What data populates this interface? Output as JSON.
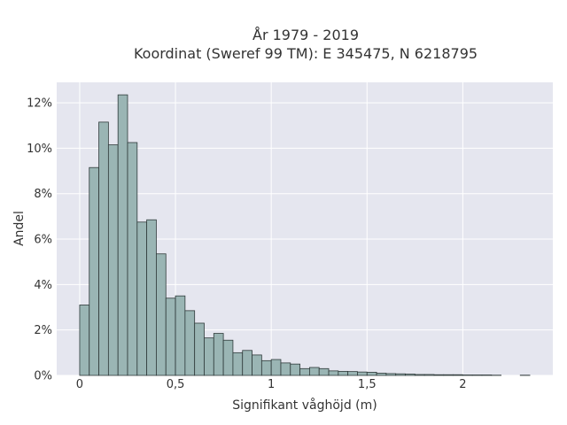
{
  "chart_data": {
    "type": "bar",
    "title": "År 1979 - 2019",
    "subtitle": "Koordinat (Sweref 99 TM): E 345475, N 6218795",
    "xlabel": "Signifikant våghöjd (m)",
    "ylabel": "Andel",
    "xlim": [
      -0.12,
      2.47
    ],
    "ylim": [
      0,
      12.9
    ],
    "x_ticks": [
      {
        "value": 0,
        "label": "0"
      },
      {
        "value": 0.5,
        "label": "0,5"
      },
      {
        "value": 1,
        "label": "1"
      },
      {
        "value": 1.5,
        "label": "1,5"
      },
      {
        "value": 2,
        "label": "2"
      }
    ],
    "y_ticks": [
      {
        "value": 0,
        "label": "0%"
      },
      {
        "value": 2,
        "label": "2%"
      },
      {
        "value": 4,
        "label": "4%"
      },
      {
        "value": 6,
        "label": "6%"
      },
      {
        "value": 8,
        "label": "8%"
      },
      {
        "value": 10,
        "label": "10%"
      },
      {
        "value": 12,
        "label": "12%"
      }
    ],
    "bin_width": 0.05,
    "bins_start": [
      0,
      0.05,
      0.1,
      0.15,
      0.2,
      0.25,
      0.3,
      0.35,
      0.4,
      0.45,
      0.5,
      0.55,
      0.6,
      0.65,
      0.7,
      0.75,
      0.8,
      0.85,
      0.9,
      0.95,
      1.0,
      1.05,
      1.1,
      1.15,
      1.2,
      1.25,
      1.3,
      1.35,
      1.4,
      1.45,
      1.5,
      1.55,
      1.6,
      1.65,
      1.7,
      1.75,
      1.8,
      1.85,
      1.9,
      1.95,
      2.0,
      2.05,
      2.1,
      2.15,
      2.2,
      2.25,
      2.3
    ],
    "values": [
      3.1,
      9.15,
      11.15,
      10.15,
      12.35,
      10.25,
      6.75,
      6.85,
      5.35,
      3.4,
      3.5,
      2.85,
      2.3,
      1.65,
      1.85,
      1.55,
      1.0,
      1.1,
      0.9,
      0.65,
      0.7,
      0.55,
      0.5,
      0.3,
      0.35,
      0.3,
      0.2,
      0.18,
      0.17,
      0.15,
      0.14,
      0.1,
      0.08,
      0.07,
      0.06,
      0.04,
      0.04,
      0.03,
      0.03,
      0.03,
      0.02,
      0.02,
      0.02,
      0.01,
      0.0,
      0.0,
      0.01
    ],
    "grid": true,
    "colors": {
      "plot_background": "#e5e6ef",
      "bar_fill": "#9ab5b4",
      "bar_stroke": "#2f3a3a",
      "grid": "#ffffff",
      "text": "#333333"
    }
  }
}
